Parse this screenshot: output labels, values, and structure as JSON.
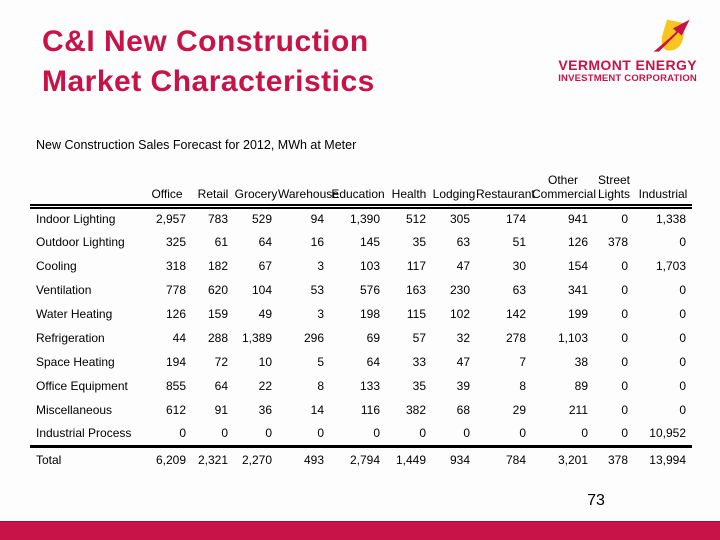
{
  "slide": {
    "title_line1": "C&I New Construction",
    "title_line2": "Market Characteristics",
    "page_number": "73"
  },
  "logo": {
    "name_line1": "VERMONT ENERGY",
    "name_line2": "INVESTMENT CORPORATION",
    "mark_icon": "flame-bolt-logo"
  },
  "colors": {
    "crimson": "#C81348",
    "yellow": "#F7C51D",
    "ink": "#000000"
  },
  "chart_data": {
    "type": "table",
    "title": "New Construction Sales Forecast for 2012, MWh at Meter",
    "columns": [
      "Office",
      "Retail",
      "Grocery",
      "Warehouse",
      "Education",
      "Health",
      "Lodging",
      "Restaurant",
      "Other\nCommercial",
      "Street\nLights",
      "Industrial"
    ],
    "rows": [
      {
        "label": "Indoor Lighting",
        "values": [
          "2,957",
          "783",
          "529",
          "94",
          "1,390",
          "512",
          "305",
          "174",
          "941",
          "0",
          "1,338"
        ]
      },
      {
        "label": "Outdoor Lighting",
        "values": [
          "325",
          "61",
          "64",
          "16",
          "145",
          "35",
          "63",
          "51",
          "126",
          "378",
          "0"
        ]
      },
      {
        "label": "Cooling",
        "values": [
          "318",
          "182",
          "67",
          "3",
          "103",
          "117",
          "47",
          "30",
          "154",
          "0",
          "1,703"
        ]
      },
      {
        "label": "Ventilation",
        "values": [
          "778",
          "620",
          "104",
          "53",
          "576",
          "163",
          "230",
          "63",
          "341",
          "0",
          "0"
        ]
      },
      {
        "label": "Water Heating",
        "values": [
          "126",
          "159",
          "49",
          "3",
          "198",
          "115",
          "102",
          "142",
          "199",
          "0",
          "0"
        ]
      },
      {
        "label": "Refrigeration",
        "values": [
          "44",
          "288",
          "1,389",
          "296",
          "69",
          "57",
          "32",
          "278",
          "1,103",
          "0",
          "0"
        ]
      },
      {
        "label": "Space Heating",
        "values": [
          "194",
          "72",
          "10",
          "5",
          "64",
          "33",
          "47",
          "7",
          "38",
          "0",
          "0"
        ]
      },
      {
        "label": "Office Equipment",
        "values": [
          "855",
          "64",
          "22",
          "8",
          "133",
          "35",
          "39",
          "8",
          "89",
          "0",
          "0"
        ]
      },
      {
        "label": "Miscellaneous",
        "values": [
          "612",
          "91",
          "36",
          "14",
          "116",
          "382",
          "68",
          "29",
          "211",
          "0",
          "0"
        ]
      },
      {
        "label": "Industrial Process",
        "values": [
          "0",
          "0",
          "0",
          "0",
          "0",
          "0",
          "0",
          "0",
          "0",
          "0",
          "10,952"
        ]
      }
    ],
    "total_row": {
      "label": "Total",
      "values": [
        "6,209",
        "2,321",
        "2,270",
        "493",
        "2,794",
        "1,449",
        "934",
        "784",
        "3,201",
        "378",
        "13,994"
      ]
    }
  }
}
